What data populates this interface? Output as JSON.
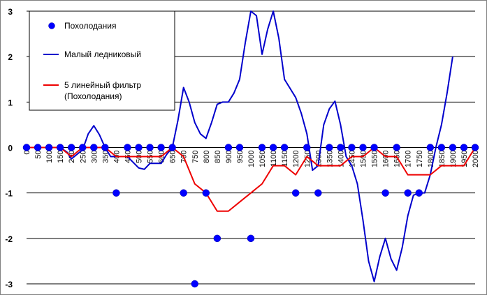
{
  "chart_data": {
    "type": "line",
    "xlim": [
      0,
      2000
    ],
    "ylim": [
      -3,
      3
    ],
    "x_ticks": [
      0,
      50,
      100,
      150,
      200,
      250,
      300,
      350,
      400,
      450,
      500,
      550,
      600,
      650,
      700,
      750,
      800,
      850,
      900,
      950,
      1000,
      1050,
      1100,
      1150,
      1200,
      1250,
      1300,
      1350,
      1400,
      1450,
      1500,
      1550,
      1600,
      1650,
      1700,
      1750,
      1800,
      1850,
      1900,
      1950,
      2000
    ],
    "x_tick_labels": [
      "0",
      "50",
      "100",
      "150",
      "200",
      "250",
      "300",
      "350",
      "400",
      "450",
      "500",
      "550",
      "600",
      "650",
      "700",
      "750",
      "800",
      "850",
      "900",
      "950",
      "1000",
      "1050",
      "1100",
      "1150",
      "1200",
      "1250",
      "1300",
      "1350",
      "1400",
      "1450",
      "1500",
      "1550",
      "1600",
      "1650",
      "1700",
      "1750",
      "1800",
      "1850",
      "1900",
      "1950",
      "2000"
    ],
    "y_ticks": [
      -3,
      -2,
      -1,
      0,
      1,
      2,
      3
    ],
    "y_tick_labels": [
      "-3",
      "-2",
      "-1",
      "0",
      "1",
      "2",
      "3"
    ],
    "grid": "horizontal",
    "legend_position": "top-left",
    "colors": {
      "scatter": "#0000ff",
      "blue_line": "#0000cc",
      "red_line": "#ee0000",
      "grid": "#000000"
    },
    "series": [
      {
        "name": "Похолодания",
        "kind": "scatter",
        "x": [
          0,
          50,
          100,
          150,
          200,
          250,
          300,
          350,
          400,
          450,
          500,
          550,
          600,
          650,
          700,
          750,
          800,
          850,
          900,
          950,
          1000,
          1050,
          1100,
          1150,
          1200,
          1250,
          1300,
          1350,
          1400,
          1450,
          1500,
          1550,
          1600,
          1650,
          1700,
          1750,
          1800,
          1850,
          1900,
          1950,
          2000
        ],
        "y": [
          0,
          0,
          0,
          0,
          0,
          0,
          0,
          0,
          -1,
          0,
          0,
          0,
          0,
          0,
          -1,
          -3,
          -1,
          -2,
          0,
          0,
          -2,
          0,
          0,
          0,
          -1,
          0,
          -1,
          0,
          0,
          0,
          0,
          0,
          -1,
          0,
          -1,
          -1,
          0,
          0,
          0,
          0,
          0
        ]
      },
      {
        "name": "Малый ледниковый",
        "kind": "line",
        "x": [
          0,
          50,
          100,
          150,
          180,
          200,
          250,
          275,
          300,
          325,
          350,
          375,
          400,
          450,
          500,
          525,
          550,
          600,
          625,
          650,
          675,
          700,
          725,
          750,
          775,
          800,
          825,
          850,
          875,
          900,
          925,
          950,
          975,
          1000,
          1025,
          1050,
          1075,
          1100,
          1125,
          1150,
          1175,
          1200,
          1225,
          1250,
          1275,
          1300,
          1325,
          1350,
          1375,
          1400,
          1425,
          1450,
          1475,
          1500,
          1525,
          1550,
          1575,
          1600,
          1625,
          1650,
          1675,
          1700,
          1725,
          1750,
          1775,
          1800,
          1825,
          1850,
          1875,
          1900
        ],
        "y": [
          0,
          0,
          0,
          0,
          -0.1,
          -0.25,
          -0.05,
          0.3,
          0.48,
          0.28,
          0,
          -0.2,
          -0.2,
          -0.2,
          -0.45,
          -0.48,
          -0.35,
          -0.35,
          -0.15,
          0,
          0.6,
          1.32,
          1.0,
          0.55,
          0.3,
          0.2,
          0.55,
          0.95,
          1.0,
          1.0,
          1.2,
          1.5,
          2.3,
          3.0,
          2.9,
          2.05,
          2.6,
          3.0,
          2.4,
          1.5,
          1.3,
          1.1,
          0.75,
          0.3,
          -0.5,
          -0.4,
          0.5,
          0.85,
          1.02,
          0.5,
          -0.2,
          -0.4,
          -0.8,
          -1.6,
          -2.5,
          -2.95,
          -2.4,
          -2.0,
          -2.45,
          -2.7,
          -2.2,
          -1.5,
          -1.05,
          -1.0,
          -1.0,
          -0.6,
          0,
          0.5,
          1.2,
          2.0
        ]
      },
      {
        "name": "5 линейный фильтр\n(Похолодания)",
        "kind": "line",
        "x": [
          0,
          50,
          100,
          150,
          200,
          250,
          300,
          350,
          400,
          450,
          500,
          550,
          600,
          650,
          700,
          750,
          800,
          850,
          900,
          950,
          1000,
          1050,
          1100,
          1150,
          1200,
          1250,
          1300,
          1350,
          1400,
          1450,
          1500,
          1550,
          1600,
          1650,
          1700,
          1750,
          1800,
          1850,
          1900,
          1950,
          2000
        ],
        "y": [
          0,
          0,
          0,
          0,
          -0.2,
          0,
          0,
          0,
          -0.2,
          -0.2,
          -0.2,
          -0.2,
          -0.2,
          0,
          -0.2,
          -0.8,
          -1.0,
          -1.4,
          -1.4,
          -1.2,
          -1.0,
          -0.8,
          -0.4,
          -0.4,
          -0.6,
          -0.2,
          -0.4,
          -0.4,
          -0.4,
          -0.2,
          -0.2,
          0,
          -0.2,
          -0.2,
          -0.6,
          -0.6,
          -0.6,
          -0.4,
          -0.4,
          -0.4,
          0
        ]
      }
    ]
  }
}
